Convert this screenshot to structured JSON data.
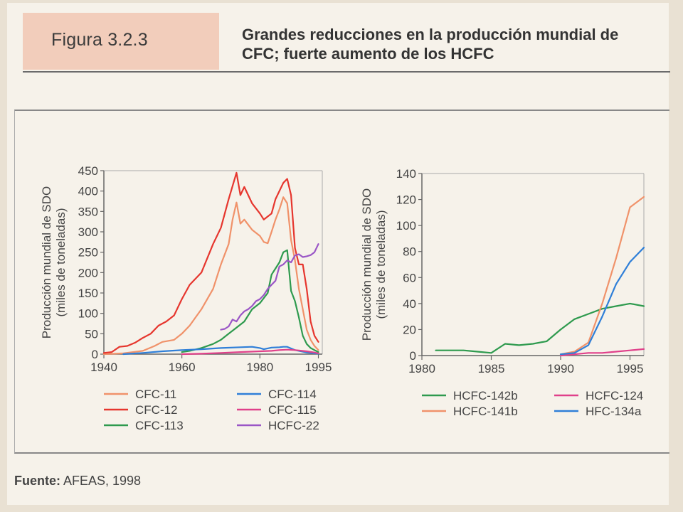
{
  "figure": {
    "label": "Figura 3.2.3",
    "title": "Grandes reducciones en la producción mundial de CFC; fuerte aumento de los HCFC",
    "source_prefix": "Fuente:",
    "source_text": " AFEAS, 1998"
  },
  "chart_data": [
    {
      "type": "line",
      "ylabel": "Producción mundial de SDO (miles de toneladas)",
      "xlim": [
        1940,
        1996
      ],
      "ylim": [
        0,
        450
      ],
      "xticks": [
        1940,
        1960,
        1980,
        1995
      ],
      "yticks": [
        0,
        50,
        100,
        150,
        200,
        250,
        300,
        350,
        400,
        450
      ],
      "grid": false,
      "legend_position": "below",
      "series": [
        {
          "name": "CFC-11",
          "color": "#f0926a",
          "points": [
            [
              1940,
              0
            ],
            [
              1945,
              2
            ],
            [
              1950,
              8
            ],
            [
              1953,
              20
            ],
            [
              1955,
              30
            ],
            [
              1958,
              35
            ],
            [
              1960,
              50
            ],
            [
              1962,
              70
            ],
            [
              1965,
              110
            ],
            [
              1968,
              160
            ],
            [
              1970,
              220
            ],
            [
              1972,
              270
            ],
            [
              1973,
              330
            ],
            [
              1974,
              372
            ],
            [
              1975,
              320
            ],
            [
              1976,
              330
            ],
            [
              1978,
              305
            ],
            [
              1980,
              290
            ],
            [
              1981,
              275
            ],
            [
              1982,
              272
            ],
            [
              1983,
              300
            ],
            [
              1984,
              330
            ],
            [
              1985,
              355
            ],
            [
              1986,
              385
            ],
            [
              1987,
              370
            ],
            [
              1988,
              280
            ],
            [
              1989,
              230
            ],
            [
              1990,
              160
            ],
            [
              1991,
              110
            ],
            [
              1992,
              60
            ],
            [
              1993,
              35
            ],
            [
              1994,
              20
            ],
            [
              1995,
              10
            ]
          ]
        },
        {
          "name": "CFC-12",
          "color": "#e6362e",
          "points": [
            [
              1940,
              3
            ],
            [
              1942,
              5
            ],
            [
              1944,
              18
            ],
            [
              1946,
              20
            ],
            [
              1948,
              28
            ],
            [
              1950,
              40
            ],
            [
              1952,
              50
            ],
            [
              1954,
              70
            ],
            [
              1956,
              80
            ],
            [
              1958,
              95
            ],
            [
              1960,
              135
            ],
            [
              1962,
              170
            ],
            [
              1965,
              200
            ],
            [
              1968,
              270
            ],
            [
              1970,
              310
            ],
            [
              1972,
              380
            ],
            [
              1974,
              445
            ],
            [
              1975,
              390
            ],
            [
              1976,
              410
            ],
            [
              1978,
              370
            ],
            [
              1980,
              345
            ],
            [
              1981,
              330
            ],
            [
              1983,
              345
            ],
            [
              1984,
              380
            ],
            [
              1986,
              420
            ],
            [
              1987,
              430
            ],
            [
              1988,
              390
            ],
            [
              1989,
              260
            ],
            [
              1990,
              220
            ],
            [
              1991,
              220
            ],
            [
              1992,
              160
            ],
            [
              1993,
              80
            ],
            [
              1994,
              45
            ],
            [
              1995,
              30
            ]
          ]
        },
        {
          "name": "CFC-113",
          "color": "#2e9a4e",
          "points": [
            [
              1960,
              5
            ],
            [
              1962,
              8
            ],
            [
              1965,
              15
            ],
            [
              1968,
              25
            ],
            [
              1970,
              35
            ],
            [
              1972,
              50
            ],
            [
              1974,
              65
            ],
            [
              1976,
              80
            ],
            [
              1978,
              110
            ],
            [
              1980,
              125
            ],
            [
              1982,
              150
            ],
            [
              1983,
              195
            ],
            [
              1984,
              210
            ],
            [
              1985,
              225
            ],
            [
              1986,
              250
            ],
            [
              1987,
              255
            ],
            [
              1988,
              155
            ],
            [
              1989,
              130
            ],
            [
              1990,
              90
            ],
            [
              1991,
              45
            ],
            [
              1992,
              25
            ],
            [
              1993,
              15
            ],
            [
              1994,
              10
            ],
            [
              1995,
              5
            ]
          ]
        },
        {
          "name": "CFC-114",
          "color": "#2f7fd8",
          "points": [
            [
              1945,
              0
            ],
            [
              1950,
              3
            ],
            [
              1955,
              7
            ],
            [
              1960,
              10
            ],
            [
              1965,
              12
            ],
            [
              1970,
              15
            ],
            [
              1975,
              17
            ],
            [
              1978,
              18
            ],
            [
              1980,
              15
            ],
            [
              1981,
              12
            ],
            [
              1983,
              16
            ],
            [
              1985,
              17
            ],
            [
              1986,
              18
            ],
            [
              1987,
              18
            ],
            [
              1988,
              14
            ],
            [
              1989,
              10
            ],
            [
              1990,
              8
            ],
            [
              1992,
              4
            ],
            [
              1994,
              2
            ],
            [
              1995,
              1
            ]
          ]
        },
        {
          "name": "CFC-115",
          "color": "#e0408a",
          "points": [
            [
              1960,
              0
            ],
            [
              1965,
              1
            ],
            [
              1970,
              3
            ],
            [
              1975,
              5
            ],
            [
              1980,
              7
            ],
            [
              1983,
              8
            ],
            [
              1985,
              10
            ],
            [
              1987,
              11
            ],
            [
              1989,
              10
            ],
            [
              1990,
              9
            ],
            [
              1992,
              7
            ],
            [
              1994,
              4
            ],
            [
              1995,
              2
            ]
          ]
        },
        {
          "name": "HCFC-22",
          "color": "#9a56c6",
          "points": [
            [
              1970,
              60
            ],
            [
              1971,
              62
            ],
            [
              1972,
              68
            ],
            [
              1973,
              85
            ],
            [
              1974,
              80
            ],
            [
              1975,
              95
            ],
            [
              1976,
              105
            ],
            [
              1977,
              110
            ],
            [
              1978,
              118
            ],
            [
              1979,
              130
            ],
            [
              1980,
              135
            ],
            [
              1981,
              145
            ],
            [
              1982,
              160
            ],
            [
              1983,
              170
            ],
            [
              1984,
              180
            ],
            [
              1985,
              215
            ],
            [
              1986,
              220
            ],
            [
              1987,
              230
            ],
            [
              1988,
              225
            ],
            [
              1989,
              242
            ],
            [
              1990,
              245
            ],
            [
              1991,
              238
            ],
            [
              1992,
              240
            ],
            [
              1993,
              243
            ],
            [
              1994,
              250
            ],
            [
              1995,
              270
            ]
          ]
        }
      ]
    },
    {
      "type": "line",
      "ylabel": "Producción mundial de SDO (miles de toneladas)",
      "xlim": [
        1980,
        1996
      ],
      "ylim": [
        0,
        140
      ],
      "xticks": [
        1980,
        1985,
        1990,
        1995
      ],
      "yticks": [
        0,
        20,
        40,
        60,
        80,
        100,
        120,
        140
      ],
      "grid": false,
      "legend_position": "below",
      "series": [
        {
          "name": "HCFC-142b",
          "color": "#2e9a4e",
          "points": [
            [
              1981,
              4
            ],
            [
              1983,
              4
            ],
            [
              1984,
              3
            ],
            [
              1985,
              2
            ],
            [
              1986,
              9
            ],
            [
              1987,
              8
            ],
            [
              1988,
              9
            ],
            [
              1989,
              11
            ],
            [
              1990,
              20
            ],
            [
              1991,
              28
            ],
            [
              1992,
              32
            ],
            [
              1993,
              36
            ],
            [
              1994,
              38
            ],
            [
              1995,
              40
            ],
            [
              1996,
              38
            ]
          ]
        },
        {
          "name": "HCFC-124",
          "color": "#e0408a",
          "points": [
            [
              1990,
              0
            ],
            [
              1991,
              1
            ],
            [
              1992,
              2
            ],
            [
              1993,
              2
            ],
            [
              1994,
              3
            ],
            [
              1995,
              4
            ],
            [
              1996,
              5
            ]
          ]
        },
        {
          "name": "HCFC-141b",
          "color": "#f0926a",
          "points": [
            [
              1990,
              1
            ],
            [
              1991,
              3
            ],
            [
              1992,
              10
            ],
            [
              1993,
              40
            ],
            [
              1994,
              75
            ],
            [
              1995,
              114
            ],
            [
              1996,
              122
            ]
          ]
        },
        {
          "name": "HFC-134a",
          "color": "#2f7fd8",
          "points": [
            [
              1990,
              1
            ],
            [
              1991,
              2
            ],
            [
              1992,
              8
            ],
            [
              1993,
              30
            ],
            [
              1994,
              55
            ],
            [
              1995,
              72
            ],
            [
              1996,
              83
            ]
          ]
        }
      ]
    }
  ]
}
